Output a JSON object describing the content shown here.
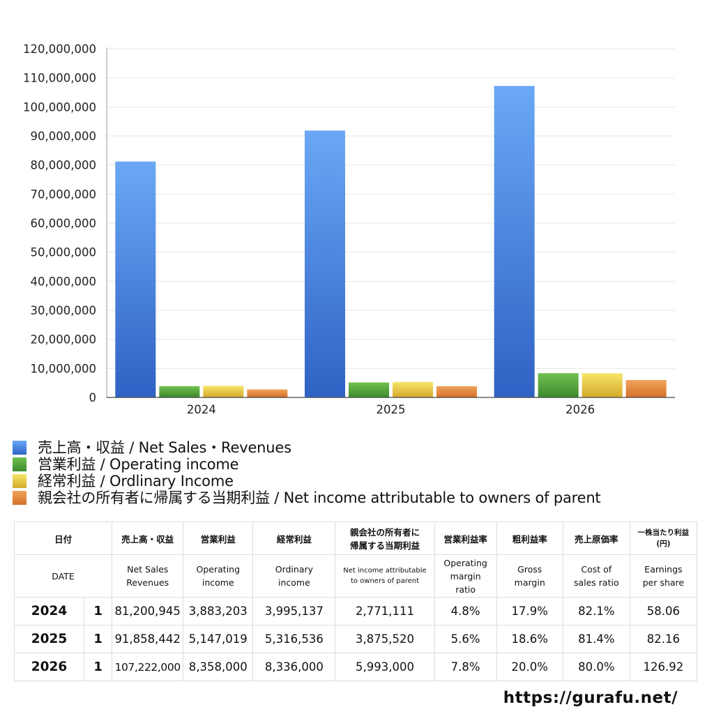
{
  "chart_data": {
    "type": "bar",
    "title": "",
    "xlabel": "",
    "ylabel": "",
    "categories": [
      "2024",
      "2025",
      "2026"
    ],
    "ylim": [
      0,
      120000000
    ],
    "yticks": [
      0,
      10000000,
      20000000,
      30000000,
      40000000,
      50000000,
      60000000,
      70000000,
      80000000,
      90000000,
      100000000,
      110000000,
      120000000
    ],
    "ytick_labels": [
      "0",
      "10,000,000",
      "20,000,000",
      "30,000,000",
      "40,000,000",
      "50,000,000",
      "60,000,000",
      "70,000,000",
      "80,000,000",
      "90,000,000",
      "100,000,000",
      "110,000,000",
      "120,000,000"
    ],
    "grid": true,
    "legend_position": "bottom",
    "series": [
      {
        "name": "売上高・収益 / Net Sales・Revenues",
        "values": [
          81200945,
          91858442,
          107222000
        ],
        "color": "#4a8ae6",
        "color_top": "#6aa8f5",
        "color_bottom": "#2f62c4"
      },
      {
        "name": "営業利益 / Operating income",
        "values": [
          3883203,
          5147019,
          8358000
        ],
        "color": "#52a23c",
        "color_top": "#6fc04e",
        "color_bottom": "#3c8a2e"
      },
      {
        "name": "経常利益 / Ordlinary Income",
        "values": [
          3995137,
          5316536,
          8336000
        ],
        "color": "#e4c43a",
        "color_top": "#f6e56a",
        "color_bottom": "#d4a92a"
      },
      {
        "name": "親会社の所有者に帰属する当期利益 / Net income attributable to owners of parent",
        "values": [
          2771111,
          3875520,
          5993000
        ],
        "color": "#e3893a",
        "color_top": "#f0a35a",
        "color_bottom": "#d5702a"
      }
    ]
  },
  "table": {
    "header_jp": {
      "date": "日付",
      "sales": "売上高・収益",
      "op_income": "営業利益",
      "ord_income": "経常利益",
      "net_income_line1": "親会社の所有者に",
      "net_income_line2": "帰属する当期利益",
      "op_margin": "営業利益率",
      "gross_margin": "粗利益率",
      "cost_ratio": "売上原価率",
      "eps_line1": "一株当たり利益",
      "eps_line2": "(円)"
    },
    "header_en": {
      "date": "DATE",
      "sales_line1": "Net Sales",
      "sales_line2": "Revenues",
      "op_income_line1": "Operating",
      "op_income_line2": "income",
      "ord_income_line1": "Ordinary",
      "ord_income_line2": "income",
      "net_income_line1": "Net income attributable",
      "net_income_line2": "to owners of parent",
      "op_margin_line1": "Operating",
      "op_margin_line2": "margin",
      "op_margin_line3": "ratio",
      "gross_margin_line1": "Gross",
      "gross_margin_line2": "margin",
      "cost_ratio_line1": "Cost of",
      "cost_ratio_line2": "sales ratio",
      "eps_line1": "Earnings",
      "eps_line2": "per share"
    },
    "rows": [
      {
        "year": "2024",
        "quarter": "1",
        "sales": "81,200,945",
        "op_income": "3,883,203",
        "ord_income": "3,995,137",
        "net_income": "2,771,111",
        "op_margin": "4.8%",
        "gross_margin": "17.9%",
        "cost_ratio": "82.1%",
        "eps": "58.06"
      },
      {
        "year": "2025",
        "quarter": "1",
        "sales": "91,858,442",
        "op_income": "5,147,019",
        "ord_income": "5,316,536",
        "net_income": "3,875,520",
        "op_margin": "5.6%",
        "gross_margin": "18.6%",
        "cost_ratio": "81.4%",
        "eps": "82.16"
      },
      {
        "year": "2026",
        "quarter": "1",
        "sales": "107,222,000",
        "op_income": "8,358,000",
        "ord_income": "8,336,000",
        "net_income": "5,993,000",
        "op_margin": "7.8%",
        "gross_margin": "20.0%",
        "cost_ratio": "80.0%",
        "eps": "126.92"
      }
    ]
  },
  "footer": {
    "url": "https://gurafu.net/"
  }
}
